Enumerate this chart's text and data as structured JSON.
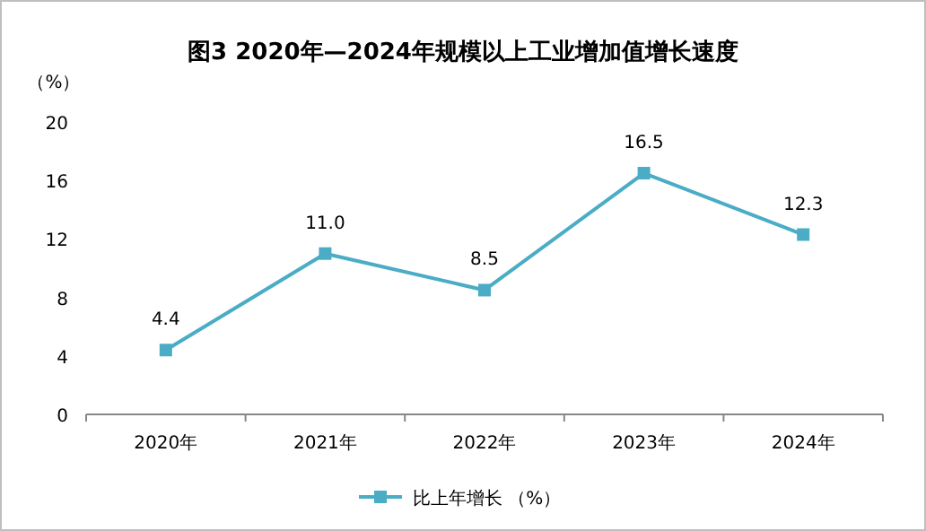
{
  "chart_data": {
    "type": "line",
    "title": "图3 2020年—2024年规模以上工业增加值增长速度",
    "ylabel": "（%）",
    "categories": [
      "2020年",
      "2021年",
      "2022年",
      "2023年",
      "2024年"
    ],
    "series": [
      {
        "name": "比上年增长 （%）",
        "color": "#4aacc5",
        "values": [
          4.4,
          11.0,
          8.5,
          16.5,
          12.3
        ],
        "value_labels": [
          "4.4",
          "11.0",
          "8.5",
          "16.5",
          "12.3"
        ]
      }
    ],
    "ylim": [
      0,
      20
    ],
    "yticks": [
      0,
      4,
      8,
      12,
      16,
      20
    ],
    "marker": "square",
    "legend": "bottom",
    "grid": false
  }
}
